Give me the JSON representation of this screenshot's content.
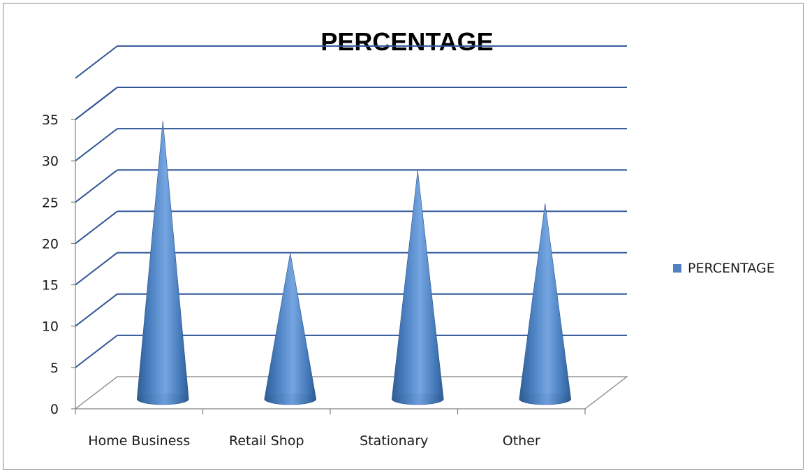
{
  "chart_data": {
    "type": "bar",
    "subtype": "3d-cone",
    "title": "PERCENTAGE",
    "categories": [
      "Home Business",
      "Retail Shop",
      "Stationary",
      "Other"
    ],
    "series": [
      {
        "name": "PERCENTAGE",
        "values": [
          34,
          18,
          28,
          24
        ]
      }
    ],
    "ylim": [
      0,
      35
    ],
    "yticks": [
      "0",
      "5",
      "10",
      "15",
      "20",
      "25",
      "30",
      "35"
    ],
    "grid": true,
    "legend_position": "right",
    "colors": {
      "series": "#4f81bd",
      "grid": "#2f5597",
      "axis": "#808080"
    }
  }
}
